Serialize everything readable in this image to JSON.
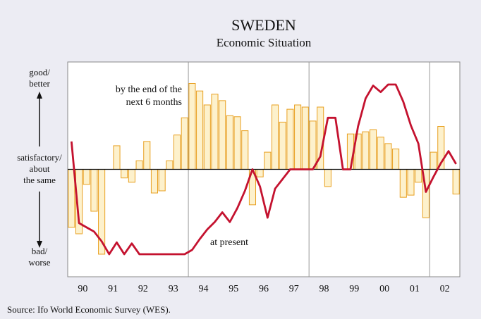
{
  "chart_data": {
    "type": "bar-line",
    "title": "SWEDEN",
    "subtitle": "Economic Situation",
    "source": "Source: Ifo World Economic Survey (WES).",
    "y_labels": [
      [
        "good/",
        "better"
      ],
      [
        "satisfactory/",
        "about",
        "the same"
      ],
      [
        "bad/",
        "worse"
      ]
    ],
    "annotations": [
      [
        "by the end of the",
        "next 6 months"
      ],
      [
        "at present"
      ]
    ],
    "x": [
      1990.125,
      1990.375,
      1990.625,
      1990.875,
      1991.125,
      1991.375,
      1991.625,
      1991.875,
      1992.125,
      1992.375,
      1992.625,
      1992.875,
      1993.125,
      1993.375,
      1993.625,
      1993.875,
      1994.125,
      1994.375,
      1994.625,
      1994.875,
      1995.125,
      1995.375,
      1995.625,
      1995.875,
      1996.125,
      1996.375,
      1996.625,
      1996.875,
      1997.125,
      1997.375,
      1997.625,
      1997.875,
      1998.125,
      1998.375,
      1998.625,
      1998.875,
      1999.125,
      1999.375,
      1999.625,
      1999.875,
      2000.125,
      2000.375,
      2000.625,
      2000.875,
      2001.125,
      2001.375,
      2001.625,
      2001.875,
      2002.125,
      2002.375,
      2002.625,
      2002.875
    ],
    "xlim": [
      1990,
      2003
    ],
    "xticks": [
      {
        "value": 1990.5,
        "label": "90"
      },
      {
        "value": 1991.5,
        "label": "91"
      },
      {
        "value": 1992.5,
        "label": "92"
      },
      {
        "value": 1993.5,
        "label": "93"
      },
      {
        "value": 1994.5,
        "label": "94"
      },
      {
        "value": 1995.5,
        "label": "95"
      },
      {
        "value": 1996.5,
        "label": "96"
      },
      {
        "value": 1997.5,
        "label": "97"
      },
      {
        "value": 1998.5,
        "label": "98"
      },
      {
        "value": 1999.5,
        "label": "99"
      },
      {
        "value": 2000.5,
        "label": "00"
      },
      {
        "value": 2001.5,
        "label": "01"
      },
      {
        "value": 2002.5,
        "label": "02"
      }
    ],
    "vlines": [
      1994,
      1998,
      2002
    ],
    "ylim": [
      -100,
      100
    ],
    "series": [
      {
        "kind": "bar",
        "color": "#e8a020",
        "fill": "#fdf1cc",
        "values": [
          -54,
          -60,
          -14,
          -39,
          -79,
          0,
          22,
          -8,
          -12,
          8,
          26,
          -22,
          -20,
          8,
          32,
          48,
          80,
          73,
          60,
          70,
          64,
          50,
          49,
          36,
          -33,
          -7,
          16,
          60,
          44,
          56,
          60,
          58,
          45,
          58,
          -16,
          0,
          0,
          33,
          33,
          35,
          37,
          30,
          24,
          19,
          -26,
          -24,
          -12,
          -45,
          16,
          40,
          0,
          -23
        ]
      },
      {
        "kind": "line",
        "color": "#c4122f",
        "values": [
          26,
          -50,
          -54,
          -58,
          -67,
          -79,
          -68,
          -79,
          -69,
          -79,
          -79,
          -79,
          -79,
          -79,
          -79,
          -79,
          -75,
          -65,
          -56,
          -49,
          -40,
          -49,
          -36,
          -20,
          0,
          -16,
          -45,
          -18,
          -9,
          0,
          0,
          0,
          0,
          12,
          48,
          48,
          0,
          0,
          40,
          66,
          78,
          72,
          79,
          79,
          63,
          41,
          24,
          -21,
          -7,
          6,
          17,
          5
        ]
      }
    ]
  }
}
